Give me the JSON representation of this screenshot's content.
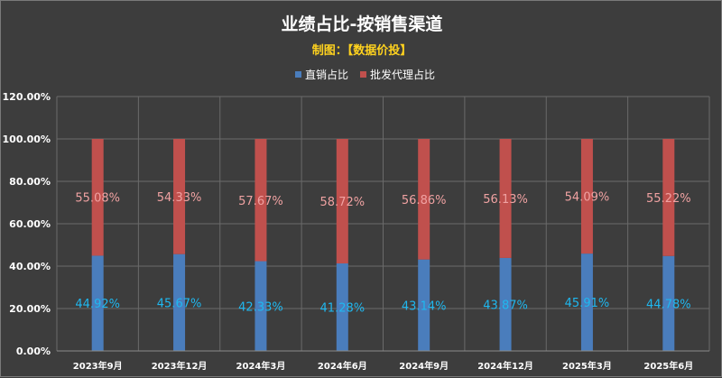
{
  "chart_data": {
    "type": "bar",
    "stacked": true,
    "title": "业绩占比-按销售渠道",
    "subtitle": "制图：【数据价投】",
    "categories": [
      "2023年9月",
      "2023年12月",
      "2024年3月",
      "2024年6月",
      "2024年9月",
      "2024年12月",
      "2025年3月",
      "2025年6月"
    ],
    "series": [
      {
        "name": "直销占比",
        "color": "#4a7dbc",
        "label_color": "#1fb8f0",
        "values": [
          44.92,
          45.67,
          42.33,
          41.28,
          43.14,
          43.87,
          45.91,
          44.78
        ],
        "labels": [
          "44.92%",
          "45.67%",
          "42.33%",
          "41.28%",
          "43.14%",
          "43.87%",
          "45.91%",
          "44.78%"
        ]
      },
      {
        "name": "批发代理占比",
        "color": "#c0504d",
        "label_color": "#f0a2a2",
        "values": [
          55.08,
          54.33,
          57.67,
          58.72,
          56.86,
          56.13,
          54.09,
          55.22
        ],
        "labels": [
          "55.08%",
          "54.33%",
          "57.67%",
          "58.72%",
          "56.86%",
          "56.13%",
          "54.09%",
          "55.22%"
        ]
      }
    ],
    "yticks": [
      "0.00%",
      "20.00%",
      "40.00%",
      "60.00%",
      "80.00%",
      "100.00%",
      "120.00%"
    ],
    "ylim": [
      0,
      120
    ],
    "grid": true,
    "legend_position": "top"
  }
}
